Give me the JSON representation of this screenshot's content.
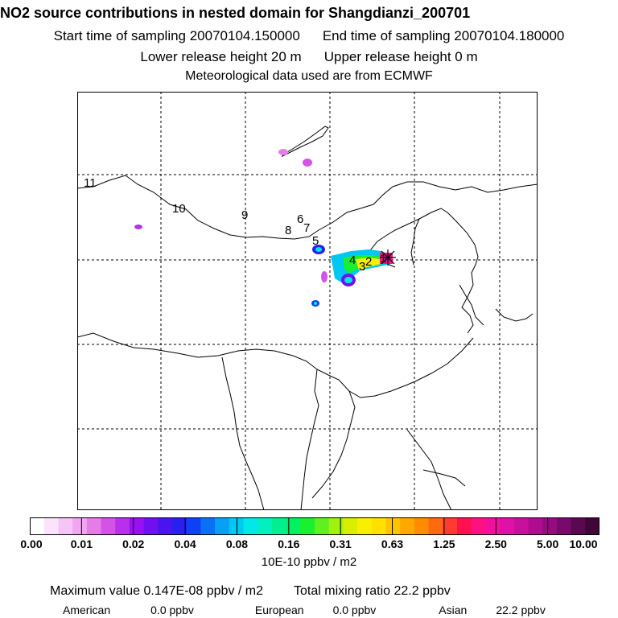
{
  "header": {
    "title": "NO2 source contributions in nested domain for Shangdianzi_200701",
    "start_label": "Start time of sampling 20070104.150000",
    "end_label": "End time of sampling 20070104.180000",
    "lower_label": "Lower release height   20 m",
    "upper_label": "Upper release height    0 m",
    "met_label": "Meteorological data used are from ECMWF"
  },
  "map": {
    "trajectory_labels": [
      "1",
      "2",
      "3",
      "4",
      "5",
      "6",
      "7",
      "8",
      "9",
      "10",
      "11"
    ],
    "station_marker": "asterisk"
  },
  "colorbar": {
    "ticks": [
      "0.00",
      "0.01",
      "0.02",
      "0.04",
      "0.08",
      "0.16",
      "0.31",
      "0.63",
      "1.25",
      "2.50",
      "5.00",
      "10.00"
    ],
    "unit": "10E-10 ppbv / m2",
    "colors": [
      "#ffffff",
      "#fbe4fb",
      "#f5c6f5",
      "#f0a6f0",
      "#e57ce8",
      "#d452e8",
      "#b830ee",
      "#9a10f0",
      "#7010f0",
      "#4a14f0",
      "#2820f0",
      "#1040f5",
      "#0a70f5",
      "#08a0f5",
      "#00c8f2",
      "#00e8e8",
      "#00f0c0",
      "#00f090",
      "#00f060",
      "#18f030",
      "#60f020",
      "#a0f010",
      "#d8f000",
      "#f8f000",
      "#ffe000",
      "#ffc400",
      "#ffa800",
      "#ff8c00",
      "#ff6a10",
      "#ff3a30",
      "#ff1050",
      "#ff1080",
      "#f010a0",
      "#e010a8",
      "#c8109c",
      "#b00c90",
      "#940c80",
      "#780a6c",
      "#5a0850",
      "#400638"
    ]
  },
  "stats": {
    "max_value": "Maximum value  0.147E-08 ppbv / m2",
    "total": "Total mixing ratio       22.2 ppbv",
    "american_label": "American",
    "american_value": "0.0 ppbv",
    "european_label": "European",
    "european_value": "0.0 ppbv",
    "asian_label": "Asian",
    "asian_value": "22.2 ppbv"
  }
}
